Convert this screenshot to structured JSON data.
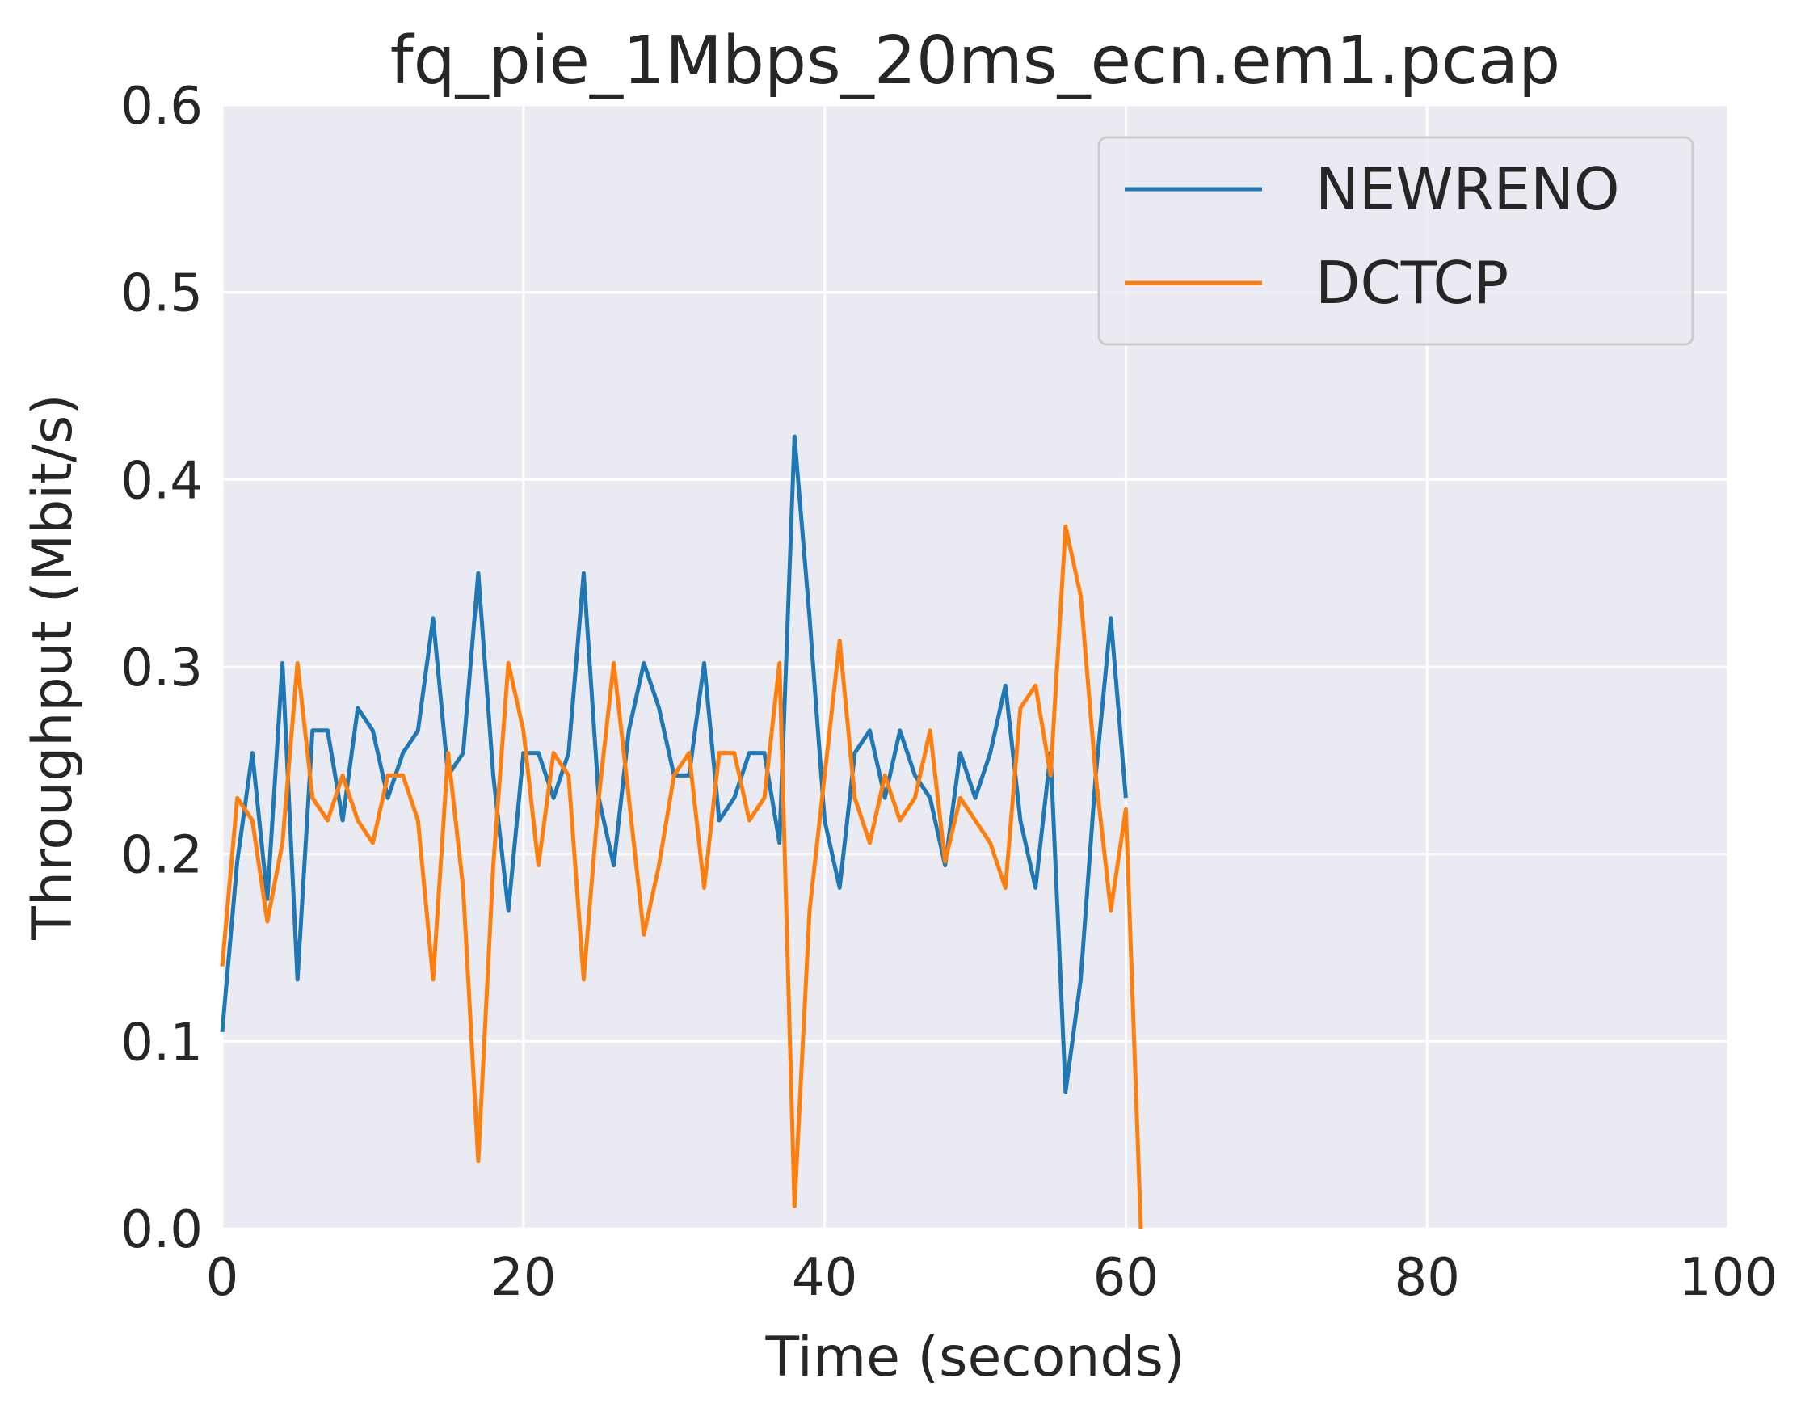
{
  "chart_data": {
    "type": "line",
    "title": "fq_pie_1Mbps_20ms_ecn.em1.pcap",
    "xlabel": "Time (seconds)",
    "ylabel": "Throughput (Mbit/s)",
    "xlim": [
      0,
      100
    ],
    "ylim": [
      0.0,
      0.6
    ],
    "xticks": [
      "0",
      "20",
      "40",
      "60",
      "80",
      "100"
    ],
    "yticks": [
      "0.0",
      "0.1",
      "0.2",
      "0.3",
      "0.4",
      "0.5",
      "0.6"
    ],
    "grid": true,
    "legend_position": "top-right",
    "series": [
      {
        "name": "NEWRENO",
        "color": "#1f77b4",
        "x": [
          0,
          1,
          2,
          3,
          4,
          5,
          6,
          7,
          8,
          9,
          10,
          11,
          12,
          13,
          14,
          15,
          16,
          17,
          18,
          19,
          20,
          21,
          22,
          23,
          24,
          25,
          26,
          27,
          28,
          29,
          30,
          31,
          32,
          33,
          34,
          35,
          36,
          37,
          38,
          39,
          40,
          41,
          42,
          43,
          44,
          45,
          46,
          47,
          48,
          49,
          50,
          51,
          52,
          53,
          54,
          55,
          56,
          57,
          58,
          59,
          60
        ],
        "y": [
          0.105,
          0.196,
          0.254,
          0.176,
          0.302,
          0.133,
          0.266,
          0.266,
          0.218,
          0.278,
          0.266,
          0.23,
          0.254,
          0.266,
          0.326,
          0.242,
          0.254,
          0.35,
          0.242,
          0.17,
          0.254,
          0.254,
          0.23,
          0.254,
          0.35,
          0.23,
          0.194,
          0.266,
          0.302,
          0.278,
          0.242,
          0.242,
          0.302,
          0.218,
          0.23,
          0.254,
          0.254,
          0.206,
          0.423,
          0.326,
          0.218,
          0.182,
          0.254,
          0.266,
          0.23,
          0.266,
          0.242,
          0.23,
          0.194,
          0.254,
          0.23,
          0.254,
          0.29,
          0.218,
          0.182,
          0.254,
          0.073,
          0.133,
          0.242,
          0.326,
          0.23
        ]
      },
      {
        "name": "DCTCP",
        "color": "#ff7f0e",
        "x": [
          0,
          1,
          2,
          3,
          4,
          5,
          6,
          7,
          8,
          9,
          10,
          11,
          12,
          13,
          14,
          15,
          16,
          17,
          18,
          19,
          20,
          21,
          22,
          23,
          24,
          25,
          26,
          27,
          28,
          29,
          30,
          31,
          32,
          33,
          34,
          35,
          36,
          37,
          38,
          39,
          40,
          41,
          42,
          43,
          44,
          45,
          46,
          47,
          48,
          49,
          50,
          51,
          52,
          53,
          54,
          55,
          56,
          57,
          58,
          59,
          60,
          61
        ],
        "y": [
          0.14,
          0.23,
          0.218,
          0.164,
          0.206,
          0.302,
          0.23,
          0.218,
          0.242,
          0.218,
          0.206,
          0.242,
          0.242,
          0.218,
          0.133,
          0.254,
          0.182,
          0.036,
          0.194,
          0.302,
          0.266,
          0.194,
          0.254,
          0.242,
          0.133,
          0.23,
          0.302,
          0.23,
          0.157,
          0.194,
          0.242,
          0.254,
          0.182,
          0.254,
          0.254,
          0.218,
          0.23,
          0.302,
          0.012,
          0.17,
          0.242,
          0.314,
          0.23,
          0.206,
          0.242,
          0.218,
          0.23,
          0.266,
          0.196,
          0.23,
          0.218,
          0.206,
          0.182,
          0.278,
          0.29,
          0.242,
          0.375,
          0.338,
          0.242,
          0.17,
          0.224,
          0.0
        ]
      }
    ]
  }
}
